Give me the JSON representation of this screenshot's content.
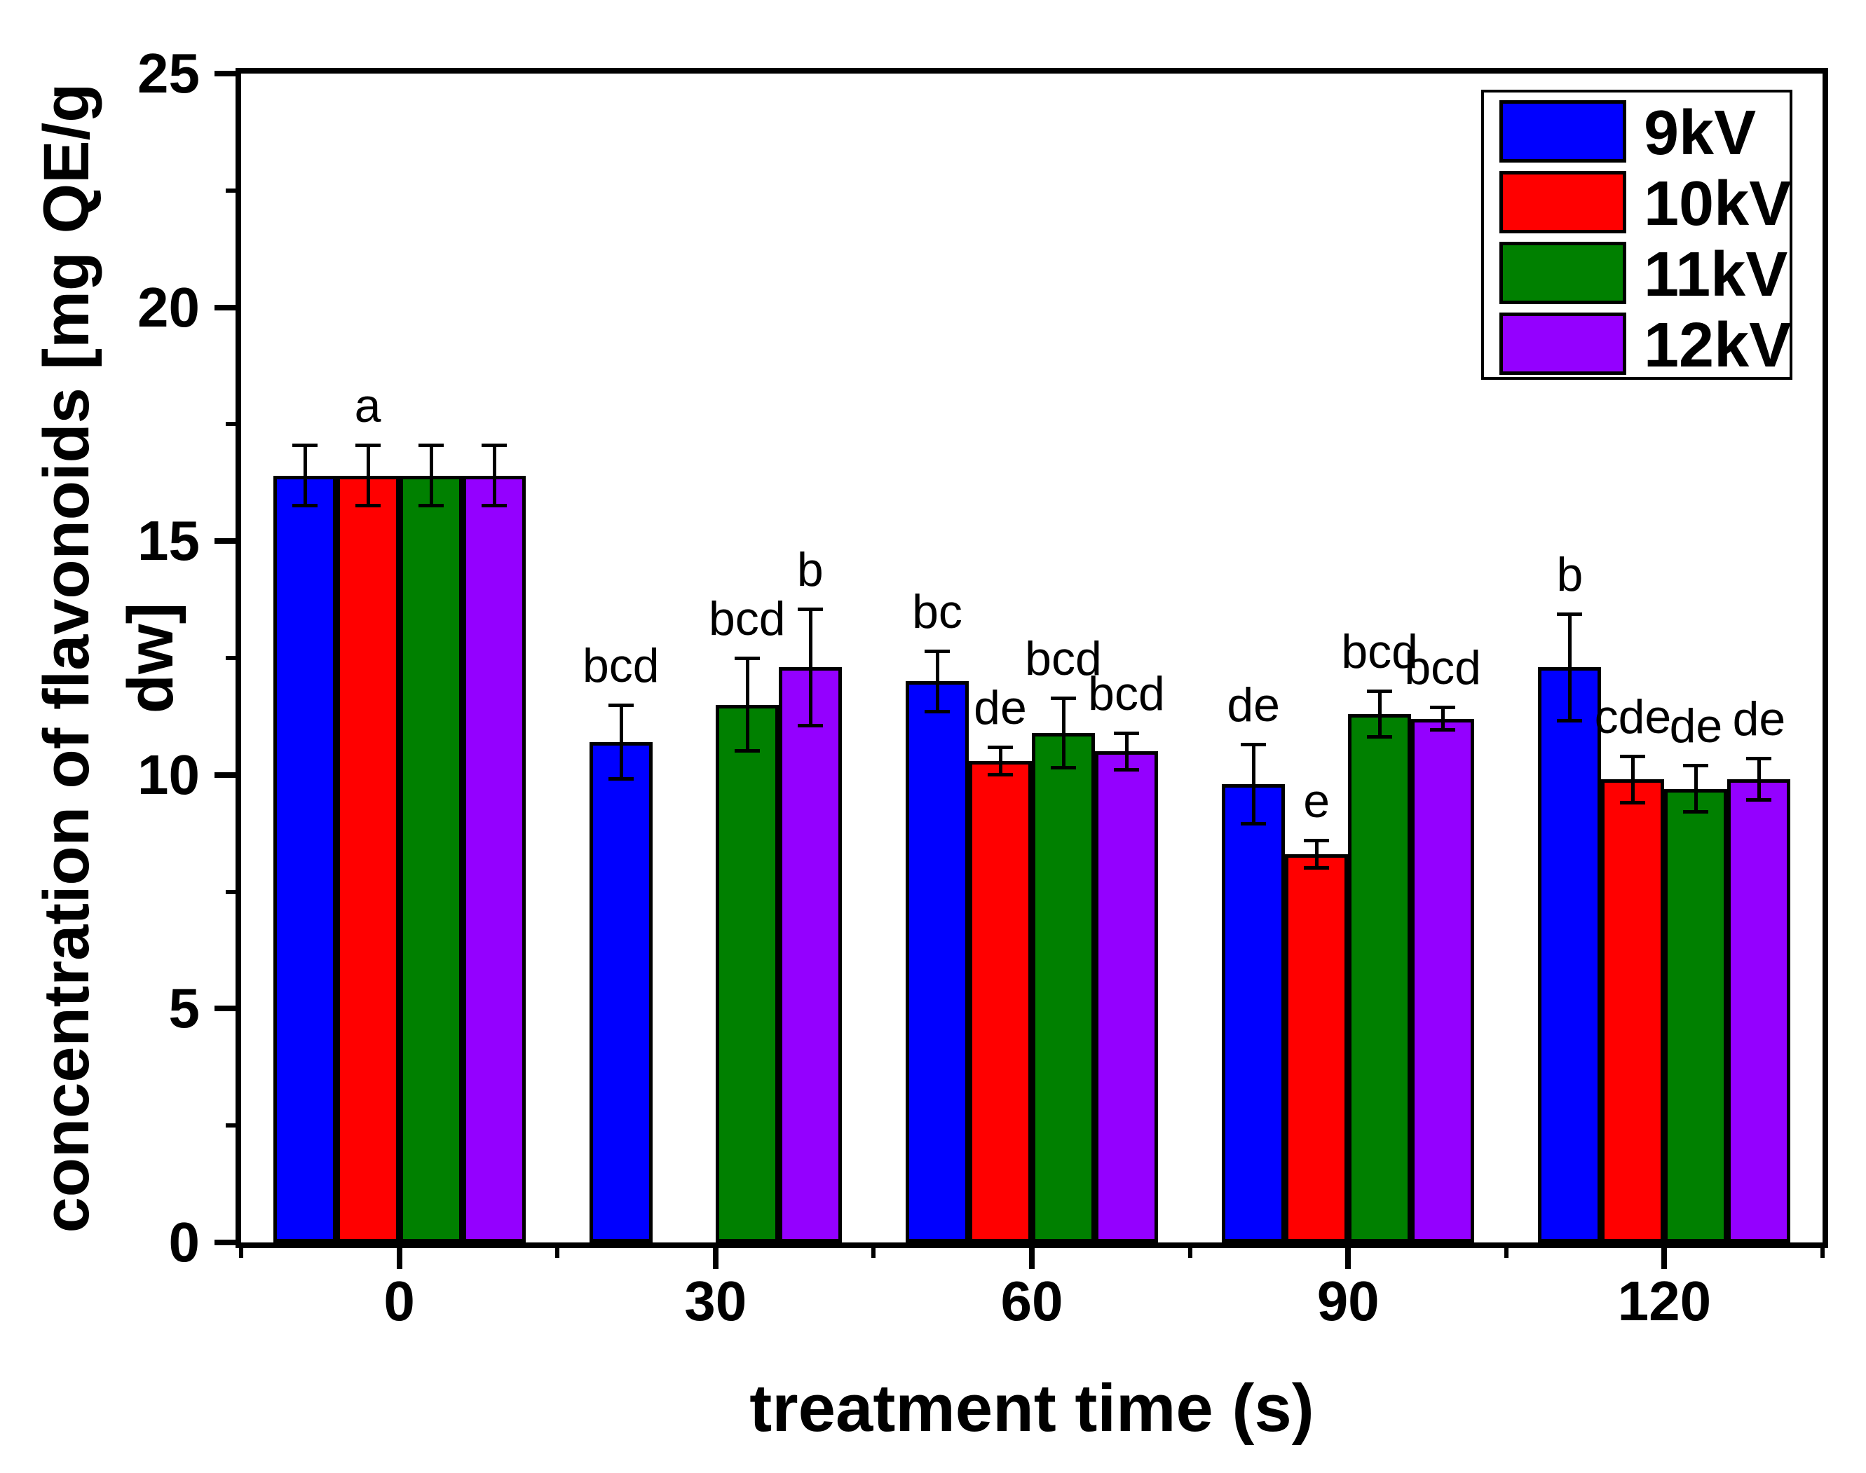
{
  "figure": {
    "background": "#ffffff",
    "frame_color": "#000000"
  },
  "chart_data": {
    "type": "bar",
    "title": "",
    "xlabel": "treatment time (s)",
    "ylabel": "concentration of flavonoids [mg QE/g dw]",
    "categories": [
      "0",
      "30",
      "60",
      "90",
      "120"
    ],
    "ylim": [
      0,
      25
    ],
    "y_major_ticks": [
      0,
      5,
      10,
      15,
      20,
      25
    ],
    "y_minor_ticks": [
      2.5,
      7.5,
      12.5,
      17.5,
      22.5
    ],
    "grid": false,
    "legend_position": "top-right",
    "error_bars": "symmetric",
    "series": [
      {
        "name": "9kV",
        "color": "#0000ff",
        "values": [
          16.4,
          10.7,
          12.0,
          9.8,
          12.3
        ],
        "errors": [
          0.65,
          0.8,
          0.65,
          0.85,
          1.15
        ]
      },
      {
        "name": "10kV",
        "color": "#ff0000",
        "values": [
          16.4,
          null,
          10.3,
          8.3,
          9.9
        ],
        "errors": [
          0.65,
          null,
          0.3,
          0.3,
          0.5
        ]
      },
      {
        "name": "11kV",
        "color": "#008000",
        "values": [
          16.4,
          11.5,
          10.9,
          11.3,
          9.7
        ],
        "errors": [
          0.65,
          1.0,
          0.75,
          0.5,
          0.5
        ]
      },
      {
        "name": "12kV",
        "color": "#9400ff",
        "values": [
          16.4,
          12.3,
          10.5,
          11.2,
          9.9
        ],
        "errors": [
          0.65,
          1.25,
          0.4,
          0.25,
          0.45
        ]
      }
    ],
    "significance_labels": [
      {
        "category": "0",
        "series": null,
        "text": "a"
      },
      {
        "category": "30",
        "series": "9kV",
        "text": "bcd"
      },
      {
        "category": "30",
        "series": "11kV",
        "text": "bcd"
      },
      {
        "category": "30",
        "series": "12kV",
        "text": "b"
      },
      {
        "category": "60",
        "series": "9kV",
        "text": "bc"
      },
      {
        "category": "60",
        "series": "10kV",
        "text": "de"
      },
      {
        "category": "60",
        "series": "11kV",
        "text": "bcd"
      },
      {
        "category": "60",
        "series": "12kV",
        "text": "bcd"
      },
      {
        "category": "90",
        "series": "9kV",
        "text": "de"
      },
      {
        "category": "90",
        "series": "10kV",
        "text": "e"
      },
      {
        "category": "90",
        "series": "11kV",
        "text": "bcd"
      },
      {
        "category": "90",
        "series": "12kV",
        "text": "bcd"
      },
      {
        "category": "120",
        "series": "9kV",
        "text": "b"
      },
      {
        "category": "120",
        "series": "10kV",
        "text": "cde"
      },
      {
        "category": "120",
        "series": "11kV",
        "text": "de"
      },
      {
        "category": "120",
        "series": "12kV",
        "text": "de"
      }
    ]
  }
}
